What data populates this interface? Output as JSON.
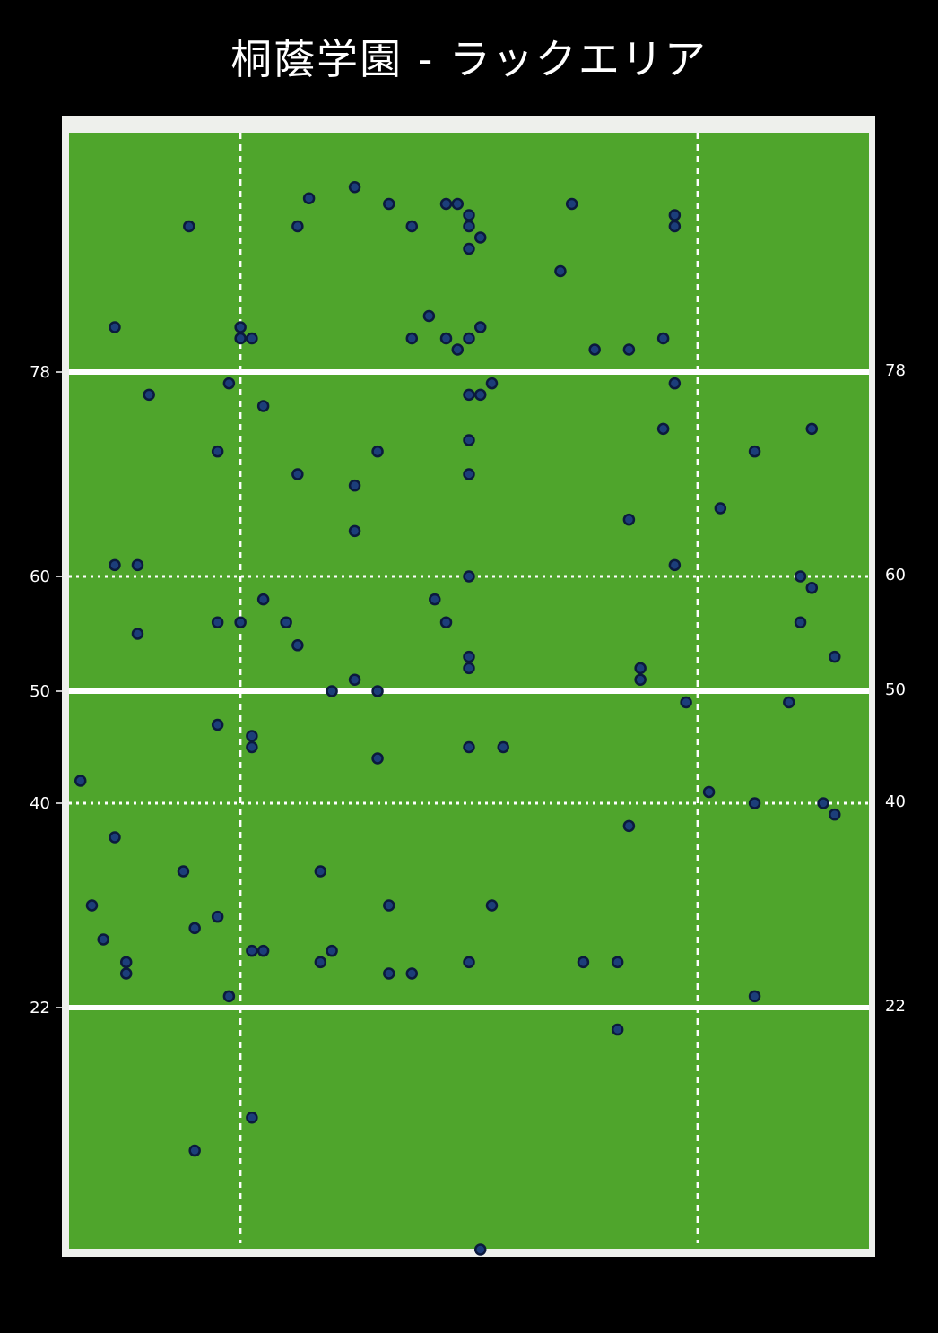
{
  "chart_data": {
    "type": "scatter",
    "title": "桐蔭学園 - ラックエリア",
    "colors": {
      "background": "#000000",
      "pitch": "#4fa52c",
      "frame": "#eef0ec",
      "line": "#ffffff",
      "point_fill": "#1c3e7a",
      "point_stroke": "#0b1a3d"
    },
    "yticks_left": [
      "78",
      "60",
      "50",
      "40",
      "22"
    ],
    "yticks_right": [
      "78",
      "60",
      "50",
      "40",
      "22"
    ],
    "ylim": [
      0,
      100
    ],
    "xlim": [
      0,
      70
    ],
    "solid_lines_y": [
      22,
      50,
      78
    ],
    "dotted_lines_y": [
      40,
      60
    ],
    "dashed_lines_x": [
      15,
      55
    ],
    "points": [
      [
        10.5,
        91.0
      ],
      [
        21.0,
        93.5
      ],
      [
        25.0,
        94.5
      ],
      [
        28.0,
        93.0
      ],
      [
        33.0,
        93.0
      ],
      [
        34.0,
        93.0
      ],
      [
        30.0,
        91.0
      ],
      [
        20.0,
        91.0
      ],
      [
        35.0,
        92.0
      ],
      [
        35.0,
        91.0
      ],
      [
        35.0,
        89.0
      ],
      [
        36.0,
        90.0
      ],
      [
        43.0,
        87.0
      ],
      [
        44.0,
        93.0
      ],
      [
        53.0,
        92.0
      ],
      [
        53.0,
        91.0
      ],
      [
        4.0,
        82.0
      ],
      [
        15.0,
        82.0
      ],
      [
        15.0,
        81.0
      ],
      [
        16.0,
        81.0
      ],
      [
        30.0,
        81.0
      ],
      [
        31.5,
        83.0
      ],
      [
        33.0,
        81.0
      ],
      [
        35.0,
        81.0
      ],
      [
        34.0,
        80.0
      ],
      [
        36.0,
        82.0
      ],
      [
        46.0,
        80.0
      ],
      [
        49.0,
        80.0
      ],
      [
        52.0,
        81.0
      ],
      [
        14.0,
        77.0
      ],
      [
        7.0,
        76.0
      ],
      [
        17.0,
        75.0
      ],
      [
        35.0,
        76.0
      ],
      [
        36.0,
        76.0
      ],
      [
        37.0,
        77.0
      ],
      [
        53.0,
        77.0
      ],
      [
        52.0,
        73.0
      ],
      [
        65.0,
        73.0
      ],
      [
        35.0,
        72.0
      ],
      [
        13.0,
        71.0
      ],
      [
        27.0,
        71.0
      ],
      [
        60.0,
        71.0
      ],
      [
        20.0,
        69.0
      ],
      [
        35.0,
        69.0
      ],
      [
        25.0,
        68.0
      ],
      [
        57.0,
        66.0
      ],
      [
        49.0,
        65.0
      ],
      [
        25.0,
        64.0
      ],
      [
        4.0,
        61.0
      ],
      [
        6.0,
        61.0
      ],
      [
        53.0,
        61.0
      ],
      [
        35.0,
        60.0
      ],
      [
        64.0,
        60.0
      ],
      [
        17.0,
        58.0
      ],
      [
        32.0,
        58.0
      ],
      [
        65.0,
        59.0
      ],
      [
        13.0,
        56.0
      ],
      [
        15.0,
        56.0
      ],
      [
        19.0,
        56.0
      ],
      [
        33.0,
        56.0
      ],
      [
        64.0,
        56.0
      ],
      [
        6.0,
        55.0
      ],
      [
        20.0,
        54.0
      ],
      [
        35.0,
        53.0
      ],
      [
        67.0,
        53.0
      ],
      [
        35.0,
        52.0
      ],
      [
        50.0,
        52.0
      ],
      [
        50.0,
        51.0
      ],
      [
        25.0,
        51.0
      ],
      [
        23.0,
        50.0
      ],
      [
        27.0,
        50.0
      ],
      [
        54.0,
        49.0
      ],
      [
        63.0,
        49.0
      ],
      [
        13.0,
        47.0
      ],
      [
        16.0,
        46.0
      ],
      [
        16.0,
        45.0
      ],
      [
        35.0,
        45.0
      ],
      [
        38.0,
        45.0
      ],
      [
        27.0,
        44.0
      ],
      [
        1.0,
        42.0
      ],
      [
        56.0,
        41.0
      ],
      [
        60.0,
        40.0
      ],
      [
        66.0,
        40.0
      ],
      [
        67.0,
        39.0
      ],
      [
        49.0,
        38.0
      ],
      [
        4.0,
        37.0
      ],
      [
        10.0,
        34.0
      ],
      [
        22.0,
        34.0
      ],
      [
        2.0,
        31.0
      ],
      [
        28.0,
        31.0
      ],
      [
        37.0,
        31.0
      ],
      [
        13.0,
        30.0
      ],
      [
        11.0,
        29.0
      ],
      [
        3.0,
        28.0
      ],
      [
        16.0,
        27.0
      ],
      [
        17.0,
        27.0
      ],
      [
        23.0,
        27.0
      ],
      [
        5.0,
        26.0
      ],
      [
        22.0,
        26.0
      ],
      [
        35.0,
        26.0
      ],
      [
        45.0,
        26.0
      ],
      [
        48.0,
        26.0
      ],
      [
        5.0,
        25.0
      ],
      [
        28.0,
        25.0
      ],
      [
        30.0,
        25.0
      ],
      [
        14.0,
        23.0
      ],
      [
        60.0,
        23.0
      ],
      [
        48.0,
        20.0
      ],
      [
        16.0,
        12.0
      ],
      [
        11.0,
        9.0
      ],
      [
        36.0,
        0.0
      ]
    ]
  }
}
